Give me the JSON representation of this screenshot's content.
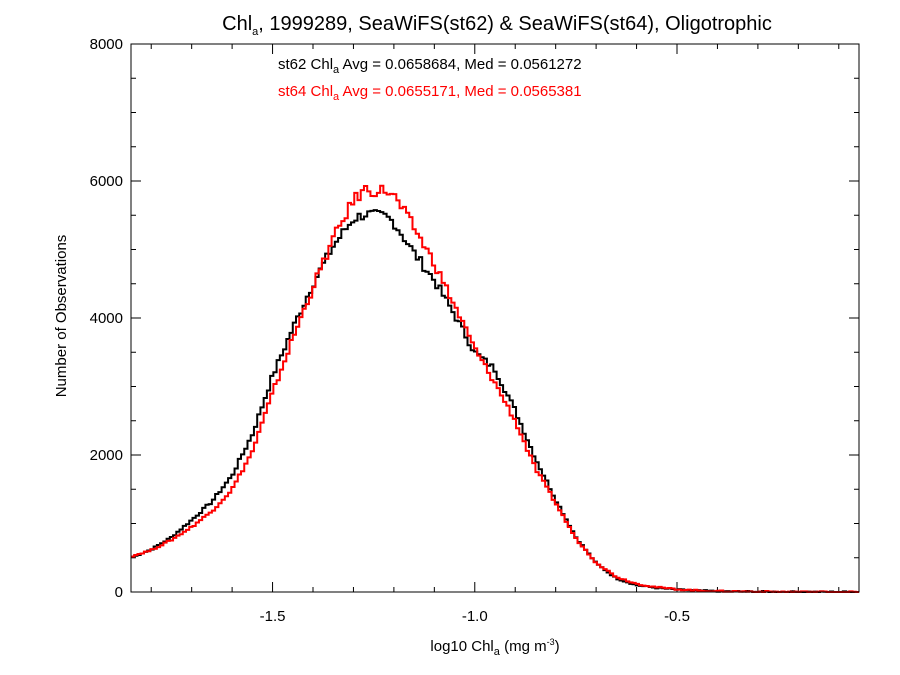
{
  "chart_data": {
    "type": "line",
    "style": "step-histogram",
    "title": {
      "part1": "Chl",
      "sub": "a",
      "part2": ", 1999289, SeaWiFS(st62) & SeaWiFS(st64), Oligotrophic"
    },
    "xlabel": {
      "pre": "log10 Chl",
      "sub": "a",
      "mid": " (mg m",
      "sup": "-3",
      "post": ")"
    },
    "ylabel": "Number of Observations",
    "xlim": [
      -1.85,
      -0.05
    ],
    "ylim": [
      0,
      8000
    ],
    "xticks": [
      {
        "value": -1.5,
        "label": "-1.5"
      },
      {
        "value": -1.0,
        "label": "-1.0"
      },
      {
        "value": -0.5,
        "label": "-0.5"
      }
    ],
    "yticks": [
      {
        "value": 0,
        "label": "0"
      },
      {
        "value": 2000,
        "label": "2000"
      },
      {
        "value": 4000,
        "label": "4000"
      },
      {
        "value": 6000,
        "label": "6000"
      },
      {
        "value": 8000,
        "label": "8000"
      }
    ],
    "grid": false,
    "legend": "top-left, stats text",
    "annotations": [
      {
        "series": "st62",
        "pre": "st62 Chl",
        "sub": "a",
        "post": " Avg = 0.0658684, Med = 0.0561272",
        "color": "#000000"
      },
      {
        "series": "st64",
        "pre": "st64 Chl",
        "sub": "a",
        "post": " Avg = 0.0655171, Med = 0.0565381",
        "color": "#ff0000"
      }
    ],
    "x": [
      -1.85,
      -1.8,
      -1.75,
      -1.7,
      -1.65,
      -1.6,
      -1.55,
      -1.5,
      -1.45,
      -1.4,
      -1.35,
      -1.3,
      -1.27,
      -1.25,
      -1.22,
      -1.2,
      -1.15,
      -1.1,
      -1.05,
      -1.0,
      -0.95,
      -0.9,
      -0.85,
      -0.8,
      -0.75,
      -0.7,
      -0.65,
      -0.6,
      -0.55,
      -0.5,
      -0.45,
      -0.4,
      -0.3,
      -0.2,
      -0.05
    ],
    "series": [
      {
        "name": "st62",
        "color": "#000000",
        "values": [
          500,
          620,
          800,
          1050,
          1320,
          1700,
          2300,
          3150,
          3850,
          4500,
          5050,
          5450,
          5520,
          5500,
          5480,
          5400,
          4950,
          4550,
          4050,
          3500,
          3250,
          2650,
          1950,
          1350,
          800,
          420,
          200,
          100,
          60,
          35,
          20,
          12,
          5,
          2,
          0
        ]
      },
      {
        "name": "st64",
        "color": "#ff0000",
        "values": [
          520,
          610,
          760,
          950,
          1180,
          1500,
          2050,
          2900,
          3700,
          4450,
          5150,
          5720,
          5880,
          5850,
          5870,
          5780,
          5320,
          4800,
          4180,
          3550,
          3050,
          2500,
          1800,
          1300,
          780,
          430,
          220,
          120,
          70,
          40,
          22,
          12,
          5,
          2,
          0
        ]
      }
    ]
  }
}
